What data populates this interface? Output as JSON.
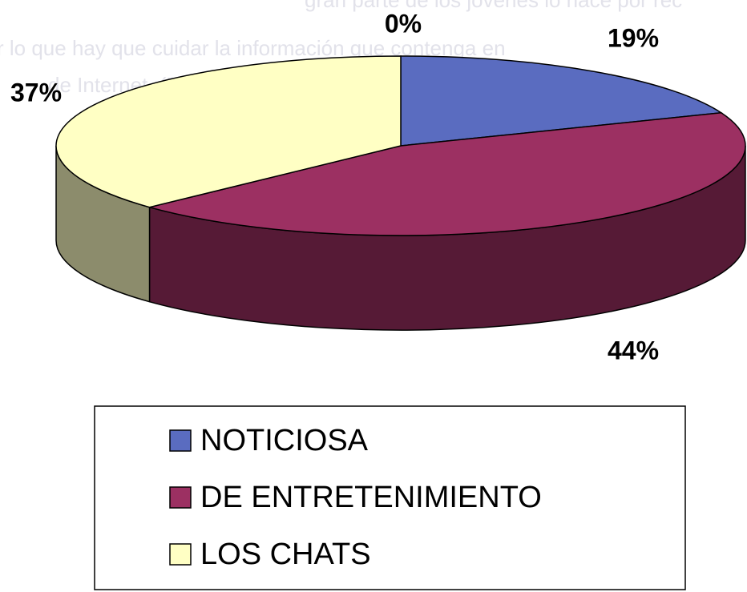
{
  "background_text": [
    "gran parte de los jóvenes lo hace por rec",
    "r lo que hay que cuidar la información que contenga en",
    "de Internet. (FIGURA 6)"
  ],
  "chart_data": {
    "type": "pie3d",
    "categories": [
      "NOTICIOSA",
      "DE ENTRETENIMIENTO",
      "LOS CHATS",
      null
    ],
    "values": [
      19,
      44,
      37,
      0
    ],
    "value_labels": [
      "19%",
      "44%",
      "37%",
      "0%"
    ],
    "colors": [
      "#5a6cc0",
      "#9c3062",
      "#ffffc4",
      "#7fc0c0"
    ],
    "legend": "bottom"
  }
}
